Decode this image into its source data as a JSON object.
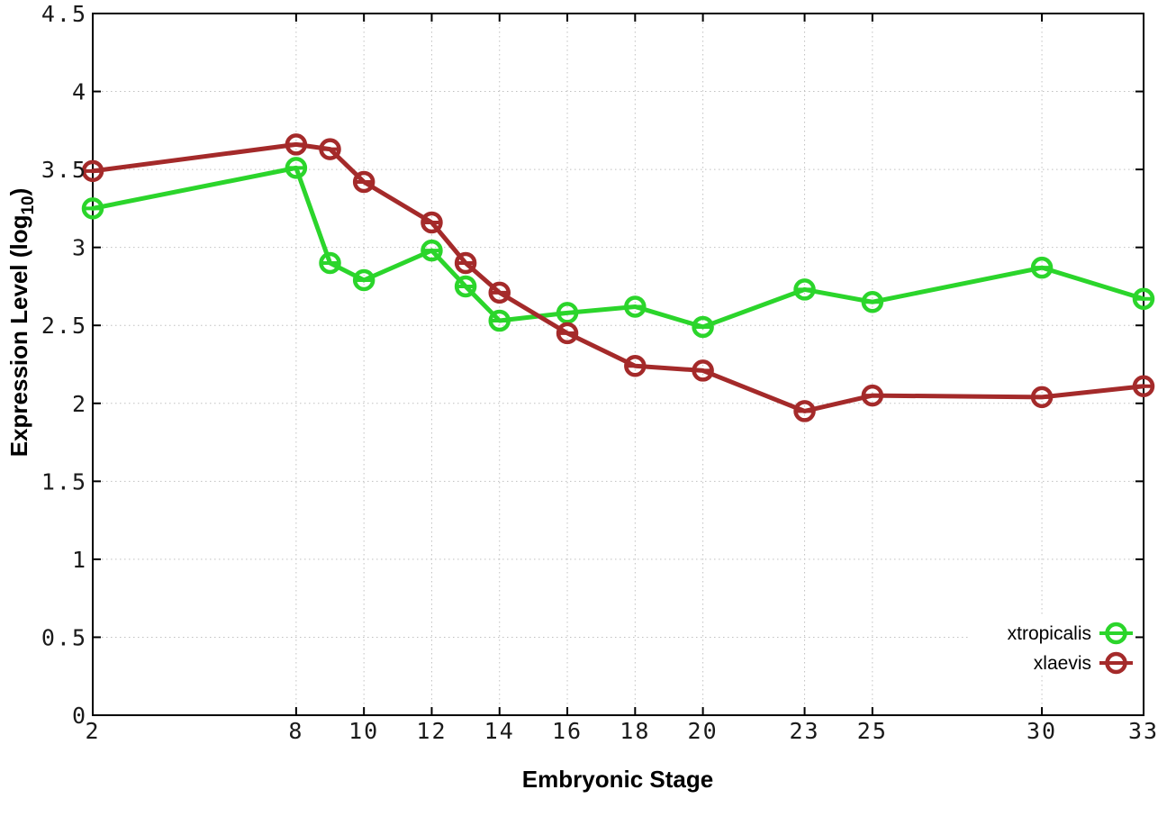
{
  "chart_data": {
    "type": "line",
    "title": "",
    "xlabel": "Embryonic Stage",
    "ylabel": "Expression Level (log10)",
    "ylabel_parts": {
      "prefix": "Expression Level (log",
      "sub": "10",
      "suffix": ")"
    },
    "xlim": [
      2,
      33
    ],
    "ylim": [
      0,
      4.5
    ],
    "grid": true,
    "legend_position": "inside-bottom-right",
    "x": [
      2,
      8,
      9,
      10,
      12,
      13,
      14,
      16,
      18,
      20,
      23,
      25,
      30,
      33
    ],
    "xtick_values": [
      2,
      8,
      10,
      12,
      14,
      16,
      18,
      20,
      23,
      25,
      30,
      33
    ],
    "xtick_labels": [
      "2",
      "8",
      "10",
      "12",
      "14",
      "16",
      "18",
      "20",
      "23",
      "25",
      "30",
      "33"
    ],
    "ytick_values": [
      0,
      0.5,
      1,
      1.5,
      2,
      2.5,
      3,
      3.5,
      4,
      4.5
    ],
    "ytick_labels": [
      "0",
      "0.5",
      "1",
      "1.5",
      "2",
      "2.5",
      "3",
      "3.5",
      "4",
      "4.5"
    ],
    "series": [
      {
        "name": "xtropicalis",
        "color": "#2bd52b",
        "marker": "open-circle",
        "values": [
          3.25,
          3.51,
          2.9,
          2.79,
          2.98,
          2.75,
          2.53,
          2.58,
          2.62,
          2.49,
          2.73,
          2.65,
          2.87,
          2.67
        ]
      },
      {
        "name": "xlaevis",
        "color": "#a42a2a",
        "marker": "open-circle",
        "values": [
          3.49,
          3.66,
          3.63,
          3.42,
          3.16,
          2.9,
          2.71,
          2.45,
          2.24,
          2.21,
          1.95,
          2.05,
          2.04,
          2.11
        ]
      }
    ]
  },
  "style_colors": {
    "background": "#ffffff",
    "grid": "#c0c0c0",
    "axis": "#000000",
    "text": "#000000"
  }
}
